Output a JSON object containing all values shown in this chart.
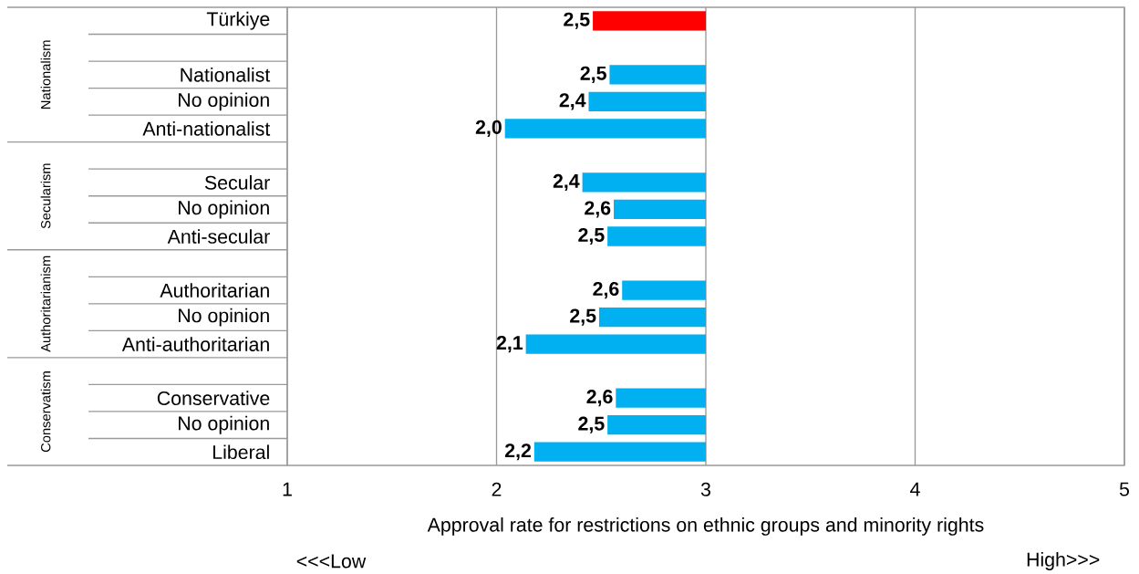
{
  "chart_data": {
    "type": "bar",
    "orientation": "horizontal",
    "xlabel": "Approval rate for restrictions on ethnic groups and minority rights",
    "categories": [
      "Türkiye",
      null,
      "Nationalist",
      "No opinion",
      "Anti-nationalist",
      null,
      "Secular",
      "No opinion",
      "Anti-secular",
      null,
      "Authoritarian",
      "No opinion",
      "Anti-authoritarian",
      null,
      "Conservative",
      "No opinion",
      "Liberal"
    ],
    "base": [
      3,
      null,
      3,
      3,
      3,
      null,
      3,
      3,
      3,
      null,
      3,
      3,
      3,
      null,
      3,
      3,
      3
    ],
    "values": [
      -0.54,
      null,
      -0.46,
      -0.56,
      -0.96,
      null,
      -0.59,
      -0.44,
      -0.47,
      null,
      -0.4,
      -0.51,
      -0.86,
      null,
      -0.43,
      -0.47,
      -0.82
    ],
    "value_labels": [
      "2,5",
      null,
      "2,5",
      "2,4",
      "2,0",
      null,
      "2,4",
      "2,6",
      "2,5",
      null,
      "2,6",
      "2,5",
      "2,1",
      null,
      "2,6",
      "2,5",
      "2,2"
    ],
    "colors": [
      "#ff0000",
      null,
      "#00b0f0",
      "#00b0f0",
      "#00b0f0",
      null,
      "#00b0f0",
      "#00b0f0",
      "#00b0f0",
      null,
      "#00b0f0",
      "#00b0f0",
      "#00b0f0",
      null,
      "#00b0f0",
      "#00b0f0",
      "#00b0f0"
    ],
    "xlim": [
      1,
      5
    ],
    "xticks": [
      1,
      2,
      3,
      4,
      5
    ],
    "grid": "x",
    "annotations": [
      "Nationalism",
      "Secularism",
      "Authoritarianism",
      "Conservatism",
      "<<<Low",
      "High>>>"
    ]
  }
}
